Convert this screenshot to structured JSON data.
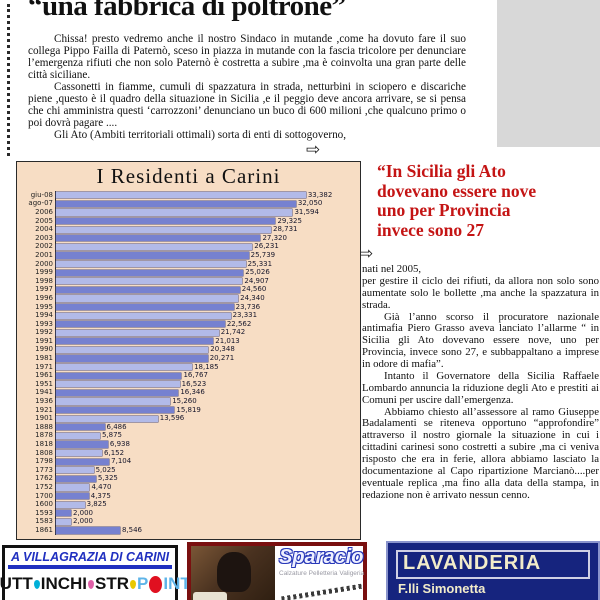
{
  "masthead": {
    "headline": "“una fabbrica di poltrone”"
  },
  "left_article": {
    "p1": "Chissa! presto vedremo anche il nostro Sindaco in mutande ,come ha dovuto fare il suo collega Pippo Failla di Paternò,   sceso in piazza in mutande con la fascia tricolore  per denunciare l’emergenza rifiuti che non solo Paternò è costretta a subire ,ma è coinvolta una gran parte delle città siciliane.",
    "p2": "Cassonetti in fiamme, cumuli di spazzatura in strada, netturbini in sciopero e discariche piene ,questo è il quadro della situazione in Sicilia ,e il peggio deve ancora arrivare, se si pensa che chi amministra questi ‘carrozzoni’ denunciano un buco di 600 milioni ,che qualcuno primo o poi dovrà pagare ....",
    "p3": "Gli Ato (Ambiti territoriali ottimali) sorta di enti  di sottogoverno,"
  },
  "right_column": {
    "quote": "“In Sicilia gli Ato\ndovevano essere nove\nuno per Provincia\ninvece sono 27",
    "p1a": "nati nel  2005,",
    "p1b": "per gestire il ciclo dei rifiuti, da allora non solo sono aumentate solo le bollette ,ma anche la spazzatura in strada.",
    "p2": "Già l’anno scorso il procuratore  nazionale antimafia Piero Grasso aveva lanciato l’allarme “ in Sicilia gli Ato dovevano essere nove, uno per Provincia, invece sono 27,  e subbappaltano a imprese in odore di mafia”.",
    "p3": "Intanto il Governatore della Sicilia Raffaele Lombardo annuncia la riduzione degli Ato e prestiti ai Comuni per uscire dall’emergenza.",
    "p4": "Abbiamo chiesto all’assessore al ramo Giuseppe Badalamenti se riteneva opportuno “approfondire” attraverso il nostro giornale la situazione in cui i cittadini carinesi sono costretti a subire ,ma ci veniva risposto che era in ferie, allora abbiamo lasciato la documentazione al Capo ripartizione Marcianò....per eventuale replica ,ma fino alla data della stampa, in redazione non è arrivato nessun cenno."
  },
  "icons": {
    "arrow_right": "⇨"
  },
  "chart_data": {
    "type": "bar",
    "orientation": "horizontal",
    "title": "I Residenti a Carini",
    "categories": [
      "giu-08",
      "ago-07",
      "2006",
      "2005",
      "2004",
      "2003",
      "2002",
      "2001",
      "2000",
      "1999",
      "1998",
      "1997",
      "1996",
      "1995",
      "1994",
      "1993",
      "1992",
      "1991",
      "1990",
      "1981",
      "1971",
      "1961",
      "1951",
      "1941",
      "1936",
      "1921",
      "1901",
      "1888",
      "1878",
      "1818",
      "1808",
      "1798",
      "1773",
      "1762",
      "1752",
      "1700",
      "1600",
      "1593",
      "1583",
      "1861"
    ],
    "values": [
      33382,
      32050,
      31594,
      29325,
      28731,
      27320,
      26231,
      25739,
      25331,
      25026,
      24907,
      24560,
      24340,
      23736,
      23331,
      22562,
      21742,
      21013,
      20348,
      20271,
      18185,
      16767,
      16523,
      16346,
      15260,
      15819,
      13596,
      6486,
      5875,
      6938,
      6152,
      7104,
      5025,
      5325,
      4470,
      4375,
      3825,
      2000,
      2000,
      8546
    ],
    "value_labels": [
      "33,382",
      "32,050",
      "31,594",
      "29,325",
      "28,731",
      "27,320",
      "26,231",
      "25,739",
      "25,331",
      "25,026",
      "24,907",
      "24,560",
      "24,340",
      "23,736",
      "23,331",
      "22,562",
      "21,742",
      "21,013",
      "20,348",
      "20,271",
      "18,185",
      "16,767",
      "16,523",
      "16,346",
      "15,260",
      "15,819",
      "13,596",
      "6,486",
      "5,875",
      "6,938",
      "6,152",
      "7,104",
      "5,025",
      "5,325",
      "4,470",
      "4,375",
      "3,825",
      "2,000",
      "2,000",
      "8,546"
    ],
    "xlim": [
      0,
      36000
    ],
    "grid": false,
    "legend": "none",
    "colors": {
      "bar_light": "#b2bae8",
      "bar_dark": "#7681d0",
      "background": "#f7ddc4"
    }
  },
  "ads": {
    "tuttinchiostro": {
      "location": "A VILLAGRAZIA DI CARINI",
      "name_part1": "TUTT",
      "name_part2": "INCHI",
      "name_part3": "STR",
      "point_p": "P",
      "point_rest": "INT",
      "drop_colors": [
        "#00b0d8",
        "#e060a8",
        "#e8c800",
        "#e01020"
      ],
      "accent": "#2030c0"
    },
    "sparacio": {
      "name": "Sparacio",
      "subtitle": "Calzature Pelletteria Valigeria",
      "border_color": "#7a1010",
      "name_color": "#2838b8"
    },
    "lavanderia": {
      "name": "LAVANDERIA",
      "subtitle": "F.lli Simonetta",
      "bg_color": "#16247e",
      "text_color": "#f2ecca"
    }
  }
}
